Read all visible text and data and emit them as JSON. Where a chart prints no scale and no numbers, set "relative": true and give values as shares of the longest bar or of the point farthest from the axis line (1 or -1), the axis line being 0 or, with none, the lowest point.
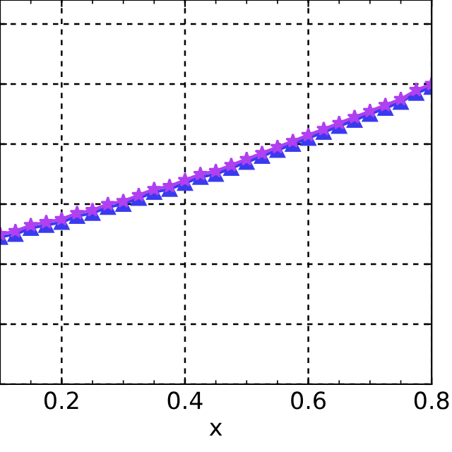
{
  "chart_data": {
    "type": "line",
    "xlabel": "x",
    "relative": true,
    "x": [
      0.1,
      0.125,
      0.15,
      0.175,
      0.2,
      0.225,
      0.25,
      0.275,
      0.3,
      0.325,
      0.35,
      0.375,
      0.4,
      0.425,
      0.45,
      0.475,
      0.5,
      0.525,
      0.55,
      0.575,
      0.6,
      0.625,
      0.65,
      0.675,
      0.7,
      0.725,
      0.75,
      0.775,
      0.8
    ],
    "series": [
      {
        "color": "#3a3af0",
        "marker": "triangle",
        "values": [
          0.49,
          0.5,
          0.52,
          0.53,
          0.54,
          0.56,
          0.57,
          0.59,
          0.6,
          0.62,
          0.64,
          0.65,
          0.67,
          0.69,
          0.7,
          0.72,
          0.74,
          0.76,
          0.78,
          0.8,
          0.82,
          0.84,
          0.86,
          0.88,
          0.9,
          0.92,
          0.94,
          0.97,
          0.99
        ]
      },
      {
        "color": "#b040f0",
        "marker": "star",
        "values": [
          0.5,
          0.51,
          0.53,
          0.54,
          0.55,
          0.57,
          0.58,
          0.6,
          0.61,
          0.63,
          0.65,
          0.66,
          0.68,
          0.7,
          0.71,
          0.73,
          0.75,
          0.77,
          0.79,
          0.81,
          0.83,
          0.85,
          0.87,
          0.89,
          0.91,
          0.93,
          0.95,
          0.98,
          1.0
        ]
      }
    ],
    "xlim": [
      0.1,
      0.8
    ],
    "xticks": [
      0.2,
      0.4,
      0.6,
      0.8
    ],
    "grid": true,
    "line_style": "solid",
    "tick_labels": "x"
  }
}
